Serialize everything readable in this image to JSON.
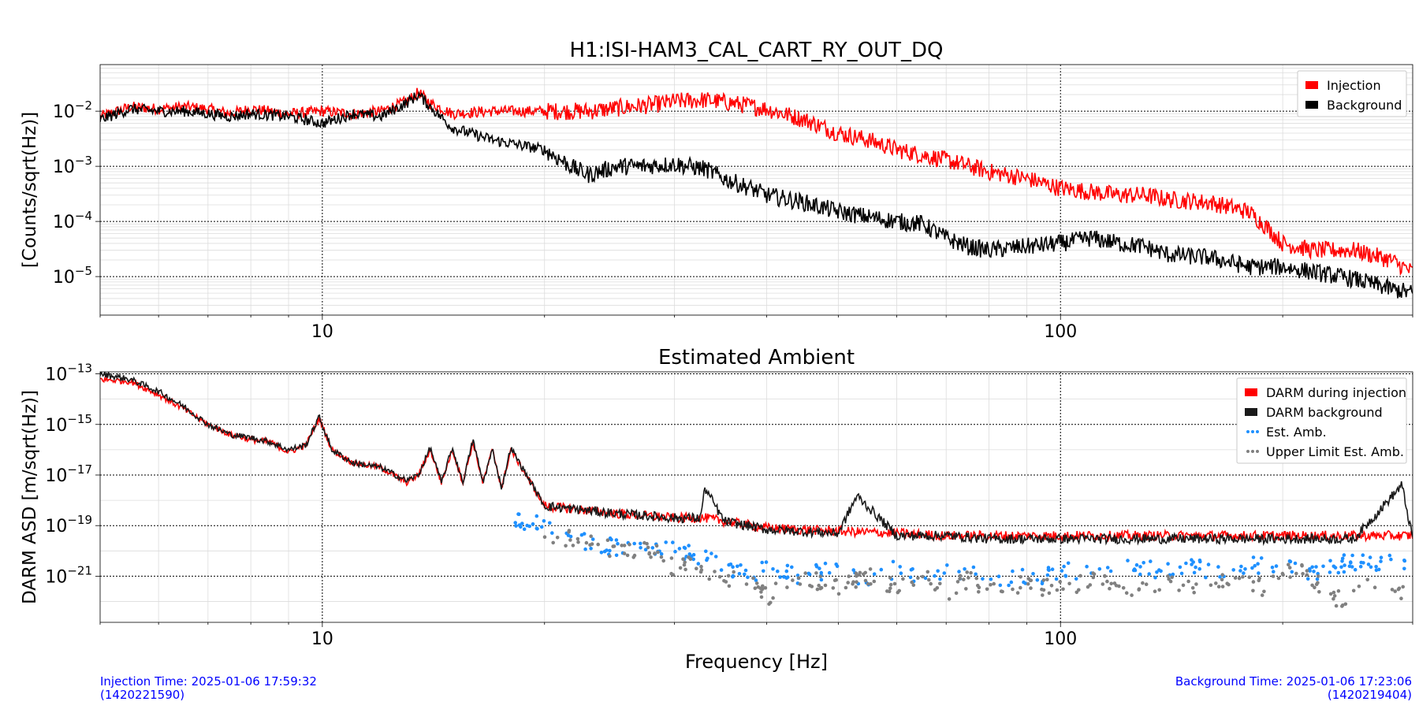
{
  "colors": {
    "injection": "#ff0000",
    "background": "#000000",
    "darm_background": "#1a1a1a",
    "est_amb": "#1e90ff",
    "upper_limit": "#808080",
    "footer_text": "#0000ff"
  },
  "footer": {
    "injection_time": "Injection Time: 2025-01-06 17:59:32",
    "injection_gps": "(1420221590)",
    "background_time": "Background Time: 2025-01-06 17:23:06",
    "background_gps": "(1420219404)"
  },
  "chart_data": [
    {
      "type": "line",
      "title": "H1:ISI-HAM3_CAL_CART_RY_OUT_DQ",
      "xlabel": "",
      "ylabel": "[Counts/sqrt(Hz)]",
      "xscale": "log",
      "yscale": "log",
      "xlim": [
        5,
        300
      ],
      "ylim": [
        2e-06,
        0.07
      ],
      "x_ticks": [
        {
          "value": 10,
          "label": "10"
        },
        {
          "value": 100,
          "label": "100"
        }
      ],
      "y_ticks": [
        {
          "value": 0.01,
          "base": "10",
          "exp": "−2"
        },
        {
          "value": 0.001,
          "base": "10",
          "exp": "−3"
        },
        {
          "value": 0.0001,
          "base": "10",
          "exp": "−4"
        },
        {
          "value": 1e-05,
          "base": "10",
          "exp": "−5"
        }
      ],
      "grid": true,
      "legend_position": "top-right",
      "series": [
        {
          "name": "Injection",
          "color": "#ff0000",
          "x": [
            5,
            5.5,
            6,
            6.5,
            7,
            7.5,
            8,
            9,
            10,
            11,
            12,
            13,
            13.5,
            14,
            15,
            17,
            20,
            23,
            26,
            28,
            30,
            33,
            36,
            40,
            45,
            50,
            55,
            60,
            70,
            80,
            90,
            100,
            120,
            130,
            140,
            160,
            180,
            190,
            200,
            220,
            250,
            280,
            300
          ],
          "y": [
            0.008,
            0.012,
            0.011,
            0.012,
            0.011,
            0.009,
            0.011,
            0.009,
            0.01,
            0.009,
            0.01,
            0.015,
            0.022,
            0.014,
            0.009,
            0.01,
            0.01,
            0.01,
            0.012,
            0.013,
            0.015,
            0.016,
            0.014,
            0.011,
            0.007,
            0.004,
            0.003,
            0.002,
            0.0013,
            0.0008,
            0.0006,
            0.0004,
            0.0003,
            0.0003,
            0.00025,
            0.00022,
            0.00015,
            8e-05,
            4e-05,
            3e-05,
            3e-05,
            2e-05,
            1.2e-05
          ]
        },
        {
          "name": "Background",
          "color": "#000000",
          "x": [
            5,
            5.5,
            6,
            6.5,
            7,
            7.5,
            8,
            9,
            10,
            11,
            12,
            13,
            13.5,
            14,
            15,
            17,
            20,
            22,
            23,
            25,
            27,
            30,
            33,
            35,
            38,
            40,
            45,
            50,
            55,
            60,
            65,
            70,
            75,
            80,
            90,
            100,
            110,
            120,
            130,
            140,
            160,
            180,
            200,
            250,
            280,
            300
          ],
          "y": [
            0.007,
            0.011,
            0.01,
            0.01,
            0.009,
            0.008,
            0.009,
            0.008,
            0.006,
            0.009,
            0.008,
            0.014,
            0.02,
            0.012,
            0.005,
            0.003,
            0.002,
            0.0009,
            0.0007,
            0.001,
            0.001,
            0.0011,
            0.0009,
            0.0006,
            0.0004,
            0.0003,
            0.00022,
            0.00015,
            0.00012,
            0.0001,
            9e-05,
            5e-05,
            3.5e-05,
            3e-05,
            3.5e-05,
            4e-05,
            5e-05,
            4e-05,
            3.5e-05,
            2.5e-05,
            2.2e-05,
            1.5e-05,
            1.5e-05,
            9e-06,
            6e-06,
            5e-06
          ]
        }
      ]
    },
    {
      "type": "line",
      "title": "Estimated Ambient",
      "xlabel": "Frequency [Hz]",
      "ylabel": "DARM ASD [m/sqrt(Hz)]",
      "xscale": "log",
      "yscale": "log",
      "xlim": [
        5,
        300
      ],
      "ylim": [
        1.5e-23,
        1.2e-13
      ],
      "x_ticks": [
        {
          "value": 10,
          "label": "10"
        },
        {
          "value": 100,
          "label": "100"
        }
      ],
      "y_ticks": [
        {
          "value": 1e-13,
          "base": "10",
          "exp": "−13"
        },
        {
          "value": 1e-15,
          "base": "10",
          "exp": "−15"
        },
        {
          "value": 1e-17,
          "base": "10",
          "exp": "−17"
        },
        {
          "value": 1e-19,
          "base": "10",
          "exp": "−19"
        },
        {
          "value": 1e-21,
          "base": "10",
          "exp": "−21"
        }
      ],
      "grid": true,
      "legend_position": "top-right",
      "series": [
        {
          "name": "DARM during injection",
          "color": "#ff0000",
          "x": [
            5,
            5.5,
            6,
            6.5,
            7,
            7.5,
            8,
            8.5,
            9,
            9.5,
            9.9,
            10.3,
            11,
            12,
            13,
            13.5,
            14,
            14.5,
            15,
            15.5,
            16,
            16.5,
            17,
            17.5,
            18,
            20,
            25,
            30,
            33,
            35,
            40,
            50,
            60,
            70,
            80,
            100,
            150,
            200,
            250,
            300
          ],
          "y": [
            6e-14,
            5e-14,
            1.5e-14,
            4e-15,
            1e-15,
            4e-16,
            2.5e-16,
            2e-16,
            8e-17,
            1.5e-16,
            1.8e-15,
            1e-16,
            3e-17,
            2e-17,
            5e-18,
            1e-17,
            1e-16,
            5e-18,
            1e-16,
            5e-18,
            2e-16,
            5e-18,
            1e-16,
            3e-18,
            1e-16,
            6e-19,
            3e-19,
            2e-19,
            2e-19,
            1.5e-19,
            8e-20,
            6e-20,
            5e-20,
            4e-20,
            4e-20,
            4e-20,
            4e-20,
            4e-20,
            4e-20,
            4e-20
          ]
        },
        {
          "name": "DARM background",
          "color": "#1a1a1a",
          "x": [
            5,
            5.5,
            6,
            6.5,
            7,
            7.5,
            8,
            8.5,
            9,
            9.5,
            9.9,
            10.3,
            11,
            12,
            13,
            13.5,
            14,
            14.5,
            15,
            15.5,
            16,
            16.5,
            17,
            17.5,
            18,
            20,
            25,
            30,
            32.5,
            33,
            35,
            40,
            50,
            53,
            60,
            70,
            80,
            100,
            150,
            200,
            250,
            290,
            300
          ],
          "y": [
            1e-13,
            6e-14,
            2e-14,
            5e-15,
            1e-15,
            4e-16,
            3e-16,
            2e-16,
            1e-16,
            1.5e-16,
            2e-15,
            1e-16,
            3e-17,
            2e-17,
            6e-18,
            1e-17,
            1.2e-16,
            5e-18,
            1.2e-16,
            5e-18,
            2.5e-16,
            5e-18,
            1e-16,
            3e-18,
            1.2e-16,
            6e-19,
            3e-19,
            2e-19,
            2e-19,
            3e-18,
            1.5e-19,
            7e-20,
            5e-20,
            1.5e-18,
            4e-20,
            4e-20,
            3e-20,
            3e-20,
            3e-20,
            3e-20,
            3e-20,
            4e-18,
            3e-20
          ]
        },
        {
          "name": "Est. Amb.",
          "color": "#1e90ff",
          "style": "points",
          "x": [
            18,
            19,
            20,
            21,
            22,
            23,
            25,
            28,
            30,
            33,
            35,
            38,
            40,
            45,
            50,
            55,
            60,
            65,
            70,
            80,
            90,
            100,
            110,
            120,
            130,
            140,
            150,
            160,
            170,
            180,
            200,
            220,
            250,
            280,
            300
          ],
          "y": [
            1.5e-19,
            1.3e-19,
            1.2e-19,
            6e-20,
            3e-20,
            2e-20,
            1.5e-20,
            8e-21,
            1.2e-20,
            5e-21,
            3e-21,
            1e-21,
            2e-21,
            1e-21,
            2e-21,
            8e-22,
            2e-21,
            6e-22,
            1.5e-21,
            1e-21,
            8e-22,
            1.5e-21,
            2e-21,
            3e-21,
            2e-21,
            1.5e-21,
            3e-21,
            1.2e-21,
            2e-21,
            3e-21,
            2e-21,
            1.5e-21,
            4e-21,
            3e-21,
            5e-21
          ]
        },
        {
          "name": "Upper Limit Est. Amb.",
          "color": "#808080",
          "style": "points",
          "x": [
            20,
            22,
            25,
            28,
            30,
            32,
            35,
            38,
            40,
            45,
            50,
            55,
            60,
            65,
            70,
            75,
            80,
            90,
            100,
            110,
            120,
            140,
            150,
            170,
            190,
            210,
            240,
            270,
            290,
            300
          ],
          "y": [
            3e-20,
            3e-20,
            1e-20,
            1e-20,
            2e-21,
            3e-21,
            8e-22,
            5e-22,
            1.5e-22,
            1e-21,
            3e-22,
            1e-21,
            4e-22,
            1.5e-21,
            2e-22,
            8e-22,
            3e-22,
            5e-22,
            3e-22,
            8e-22,
            3e-22,
            6e-22,
            4e-22,
            1e-21,
            3e-22,
            2.5e-21,
            1e-22,
            8e-22,
            2e-22,
            2e-21
          ]
        }
      ]
    }
  ]
}
